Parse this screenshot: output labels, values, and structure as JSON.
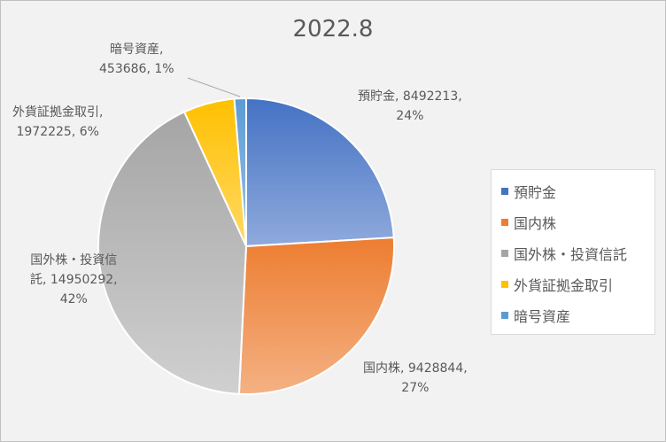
{
  "chart_data": {
    "type": "pie",
    "title": "2022.8",
    "categories": [
      "預貯金",
      "国内株",
      "国外株・投資信託",
      "外貨証拠金取引",
      "暗号資産"
    ],
    "values": [
      8492213,
      9428844,
      14950292,
      1972225,
      453686
    ],
    "percentages": [
      "24%",
      "27%",
      "42%",
      "6%",
      "1%"
    ],
    "data_labels": [
      [
        "預貯金, 8492213,",
        "24%"
      ],
      [
        "国内株, 9428844,",
        "27%"
      ],
      [
        "国外株・投資信",
        "託, 14950292,",
        "42%"
      ],
      [
        "外貨証拠金取引,",
        "1972225, 6%"
      ],
      [
        "暗号資産,",
        "453686, 1%"
      ]
    ],
    "colors": [
      "#4472c4",
      "#ed7d31",
      "#a5a5a5",
      "#ffc000",
      "#5b9bd5"
    ],
    "colors_light": [
      "#8faadc",
      "#f4b183",
      "#d0d0d0",
      "#ffd966",
      "#9dc3e6"
    ],
    "legend_position": "right"
  }
}
